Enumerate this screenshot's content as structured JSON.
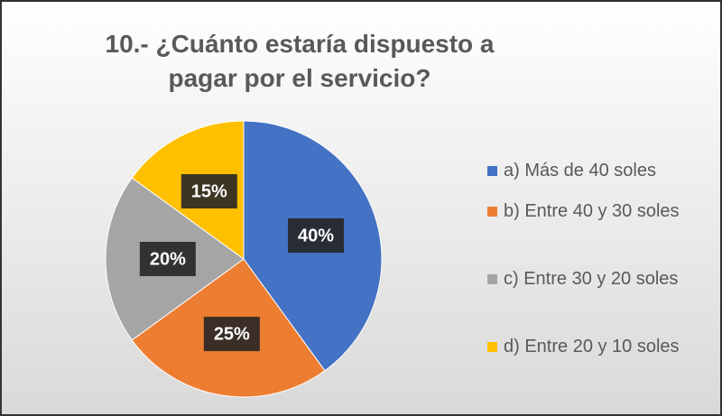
{
  "chart_data": {
    "type": "pie",
    "title": "10.- ¿Cuánto estaría dispuesto a pagar por el servicio?",
    "categories": [
      "a) Más de 40 soles",
      "b) Entre 40 y 30 soles",
      "c) Entre 30 y 20 soles",
      "d) Entre 20 y 10 soles"
    ],
    "values": [
      40,
      25,
      20,
      15
    ],
    "value_labels": [
      "40%",
      "25%",
      "20%",
      "15%"
    ],
    "colors": [
      "#4472c4",
      "#ed7d31",
      "#a5a5a5",
      "#ffc000"
    ],
    "legend": "right"
  }
}
